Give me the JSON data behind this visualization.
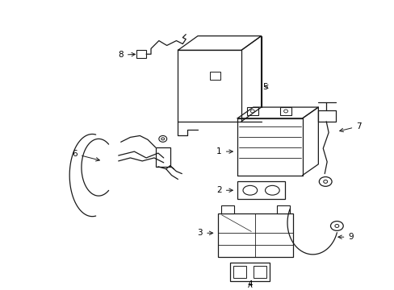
{
  "background_color": "#ffffff",
  "line_color": "#1a1a1a",
  "figsize": [
    4.89,
    3.6
  ],
  "dpi": 100,
  "lw": 0.9
}
